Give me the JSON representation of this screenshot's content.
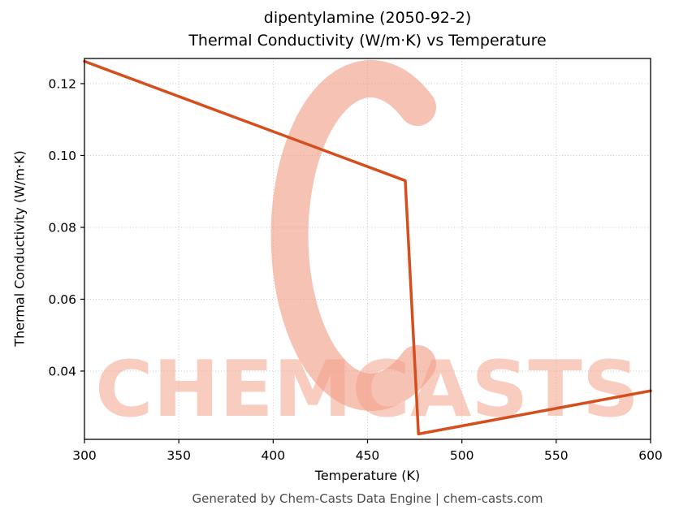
{
  "header": {
    "title_line1": "dipentylamine (2050-92-2)",
    "title_line2": "Thermal Conductivity (W/m·K) vs Temperature"
  },
  "footer": {
    "text": "Generated by Chem-Casts Data Engine | chem-casts.com"
  },
  "watermark": {
    "text": "CHEMCASTS",
    "logo": "chemcasts-c-logo",
    "color": "#ef8f76",
    "text_color": "#f4a38c"
  },
  "chart_data": {
    "type": "line",
    "title": "dipentylamine (2050-92-2) Thermal Conductivity (W/m·K) vs Temperature",
    "xlabel": "Temperature (K)",
    "ylabel": "Thermal Conductivity (W/m·K)",
    "xlim": [
      300,
      600
    ],
    "ylim": [
      0.021,
      0.127
    ],
    "xticks": [
      300,
      350,
      400,
      450,
      500,
      550,
      600
    ],
    "xtick_labels": [
      "300",
      "350",
      "400",
      "450",
      "500",
      "550",
      "600"
    ],
    "yticks": [
      0.04,
      0.06,
      0.08,
      0.1,
      0.12
    ],
    "ytick_labels": [
      "0.04",
      "0.06",
      "0.08",
      "0.10",
      "0.12"
    ],
    "grid": true,
    "legend": "none",
    "line_color": "#d44e1e",
    "series": [
      {
        "name": "Thermal Conductivity",
        "points": [
          [
            300,
            0.1262
          ],
          [
            470,
            0.093
          ],
          [
            477,
            0.0225
          ],
          [
            600,
            0.0345
          ]
        ]
      }
    ]
  }
}
